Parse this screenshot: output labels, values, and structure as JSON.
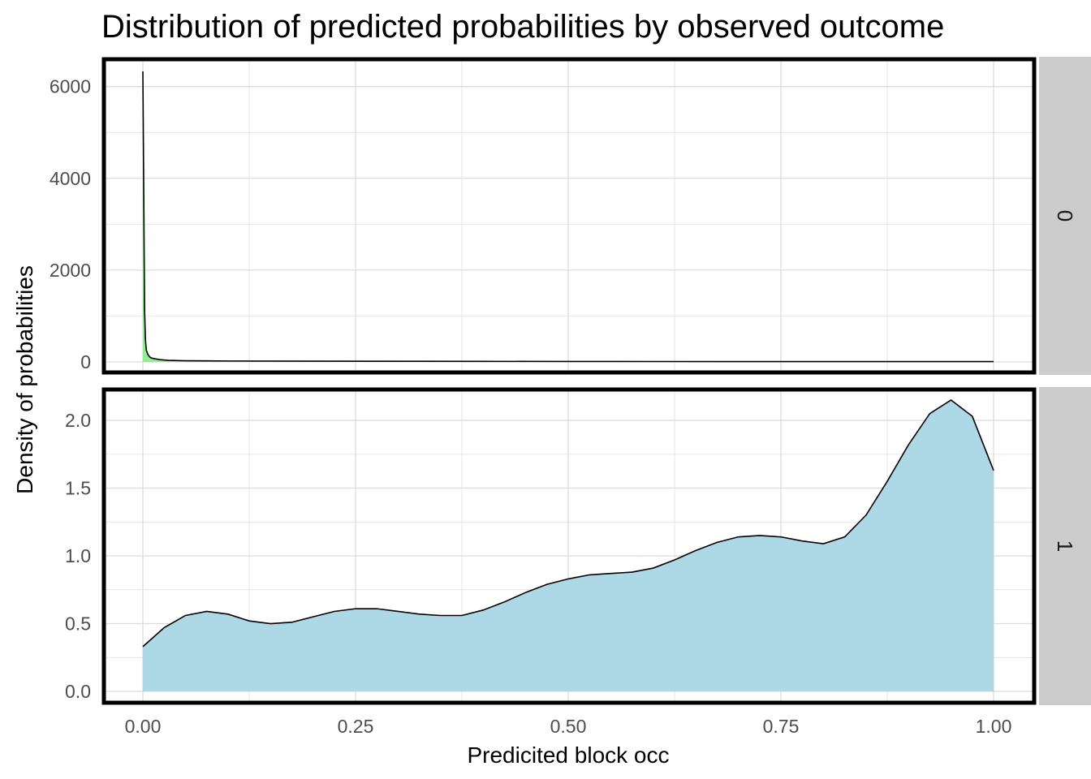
{
  "chart_data": {
    "type": "area",
    "title": "Distribution of predicted probabilities by observed outcome",
    "xlabel": "Predicited block occ",
    "ylabel": "Density of probabilities",
    "xlim": [
      0,
      1
    ],
    "x_ticks": [
      "0.00",
      "0.25",
      "0.50",
      "0.75",
      "1.00"
    ],
    "x_tick_values": [
      0,
      0.25,
      0.5,
      0.75,
      1.0
    ],
    "grid": true,
    "legend": "none",
    "facets": [
      {
        "strip": "0",
        "fill": "#90ee90",
        "ylim": [
          0,
          6500
        ],
        "y_ticks": [
          "0",
          "2000",
          "4000",
          "6000"
        ],
        "y_tick_values": [
          0,
          2000,
          4000,
          6000
        ],
        "x": [
          0,
          0.001,
          0.002,
          0.003,
          0.004,
          0.006,
          0.008,
          0.01,
          0.015,
          0.02,
          0.03,
          0.05,
          0.1,
          0.2,
          0.3,
          0.4,
          0.5,
          0.6,
          0.7,
          0.8,
          0.9,
          1.0
        ],
        "y": [
          6330,
          3800,
          1150,
          500,
          260,
          160,
          110,
          85,
          65,
          50,
          35,
          25,
          20,
          16,
          14,
          12,
          10,
          9,
          8,
          8,
          7,
          7
        ]
      },
      {
        "strip": "1",
        "fill": "#add8e6",
        "ylim": [
          0,
          2.25
        ],
        "y_ticks": [
          "0.0",
          "0.5",
          "1.0",
          "1.5",
          "2.0"
        ],
        "y_tick_values": [
          0,
          0.5,
          1.0,
          1.5,
          2.0
        ],
        "x": [
          0,
          0.025,
          0.05,
          0.075,
          0.1,
          0.125,
          0.15,
          0.175,
          0.2,
          0.225,
          0.25,
          0.275,
          0.3,
          0.325,
          0.35,
          0.375,
          0.4,
          0.425,
          0.45,
          0.475,
          0.5,
          0.525,
          0.55,
          0.575,
          0.6,
          0.625,
          0.65,
          0.675,
          0.7,
          0.725,
          0.75,
          0.775,
          0.8,
          0.825,
          0.85,
          0.875,
          0.9,
          0.925,
          0.95,
          0.975,
          1.0
        ],
        "y": [
          0.33,
          0.47,
          0.56,
          0.59,
          0.57,
          0.52,
          0.5,
          0.51,
          0.55,
          0.59,
          0.61,
          0.61,
          0.59,
          0.57,
          0.56,
          0.56,
          0.6,
          0.66,
          0.73,
          0.79,
          0.83,
          0.86,
          0.87,
          0.88,
          0.91,
          0.97,
          1.04,
          1.1,
          1.14,
          1.15,
          1.14,
          1.11,
          1.09,
          1.14,
          1.3,
          1.55,
          1.82,
          2.05,
          2.15,
          2.03,
          1.63
        ]
      }
    ]
  }
}
